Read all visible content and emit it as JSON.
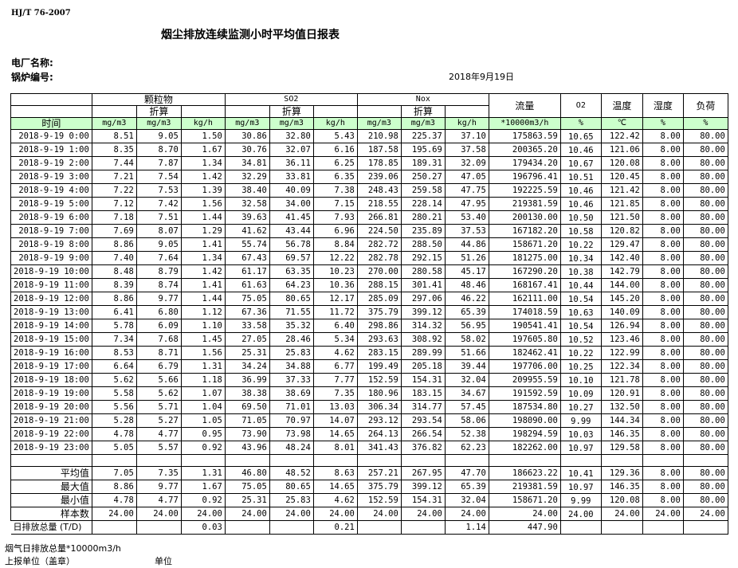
{
  "header": {
    "standard": "HJ/T  76-2007",
    "title": "烟尘排放连续监测小时平均值日报表",
    "plant_label": "电厂名称:",
    "boiler_label": "锅炉编号:",
    "date": "2018年9月19日"
  },
  "table": {
    "groups": {
      "particulate": "颗粒物",
      "so2": "SO2",
      "nox": "Nox",
      "flow": "流量",
      "o2": "O2",
      "temp": "温度",
      "humidity": "湿度",
      "load": "负荷"
    },
    "converted_label": "折算",
    "time_label": "时间",
    "units": [
      "mg/m3",
      "mg/m3",
      "kg/h",
      "mg/m3",
      "mg/m3",
      "kg/h",
      "mg/m3",
      "mg/m3",
      "kg/h",
      "*10000m3/h",
      "%",
      "℃",
      "%",
      "%"
    ],
    "rows": [
      [
        "2018-9-19 0:00",
        "8.51",
        "9.05",
        "1.50",
        "30.86",
        "32.80",
        "5.43",
        "210.98",
        "225.37",
        "37.10",
        "175863.59",
        "10.65",
        "122.42",
        "8.00",
        "80.00"
      ],
      [
        "2018-9-19 1:00",
        "8.35",
        "8.70",
        "1.67",
        "30.76",
        "32.07",
        "6.16",
        "187.58",
        "195.69",
        "37.58",
        "200365.20",
        "10.46",
        "121.06",
        "8.00",
        "80.00"
      ],
      [
        "2018-9-19 2:00",
        "7.44",
        "7.87",
        "1.34",
        "34.81",
        "36.11",
        "6.25",
        "178.85",
        "189.31",
        "32.09",
        "179434.20",
        "10.67",
        "120.08",
        "8.00",
        "80.00"
      ],
      [
        "2018-9-19 3:00",
        "7.21",
        "7.54",
        "1.42",
        "32.29",
        "33.81",
        "6.35",
        "239.06",
        "250.27",
        "47.05",
        "196796.41",
        "10.51",
        "120.45",
        "8.00",
        "80.00"
      ],
      [
        "2018-9-19 4:00",
        "7.22",
        "7.53",
        "1.39",
        "38.40",
        "40.09",
        "7.38",
        "248.43",
        "259.58",
        "47.75",
        "192225.59",
        "10.46",
        "121.42",
        "8.00",
        "80.00"
      ],
      [
        "2018-9-19 5:00",
        "7.12",
        "7.42",
        "1.56",
        "32.58",
        "34.00",
        "7.15",
        "218.55",
        "228.14",
        "47.95",
        "219381.59",
        "10.46",
        "121.85",
        "8.00",
        "80.00"
      ],
      [
        "2018-9-19 6:00",
        "7.18",
        "7.51",
        "1.44",
        "39.63",
        "41.45",
        "7.93",
        "266.81",
        "280.21",
        "53.40",
        "200130.00",
        "10.50",
        "121.50",
        "8.00",
        "80.00"
      ],
      [
        "2018-9-19 7:00",
        "7.69",
        "8.07",
        "1.29",
        "41.62",
        "43.44",
        "6.96",
        "224.50",
        "235.89",
        "37.53",
        "167182.20",
        "10.58",
        "120.82",
        "8.00",
        "80.00"
      ],
      [
        "2018-9-19 8:00",
        "8.86",
        "9.05",
        "1.41",
        "55.74",
        "56.78",
        "8.84",
        "282.72",
        "288.50",
        "44.86",
        "158671.20",
        "10.22",
        "129.47",
        "8.00",
        "80.00"
      ],
      [
        "2018-9-19 9:00",
        "7.40",
        "7.64",
        "1.34",
        "67.43",
        "69.57",
        "12.22",
        "282.78",
        "292.15",
        "51.26",
        "181275.00",
        "10.34",
        "142.40",
        "8.00",
        "80.00"
      ],
      [
        "2018-9-19 10:00",
        "8.48",
        "8.79",
        "1.42",
        "61.17",
        "63.35",
        "10.23",
        "270.00",
        "280.58",
        "45.17",
        "167290.20",
        "10.38",
        "142.79",
        "8.00",
        "80.00"
      ],
      [
        "2018-9-19 11:00",
        "8.39",
        "8.74",
        "1.41",
        "61.63",
        "64.23",
        "10.36",
        "288.15",
        "301.41",
        "48.46",
        "168167.41",
        "10.44",
        "144.00",
        "8.00",
        "80.00"
      ],
      [
        "2018-9-19 12:00",
        "8.86",
        "9.77",
        "1.44",
        "75.05",
        "80.65",
        "12.17",
        "285.09",
        "297.06",
        "46.22",
        "162111.00",
        "10.54",
        "145.20",
        "8.00",
        "80.00"
      ],
      [
        "2018-9-19 13:00",
        "6.41",
        "6.80",
        "1.12",
        "67.36",
        "71.55",
        "11.72",
        "375.79",
        "399.12",
        "65.39",
        "174018.59",
        "10.63",
        "140.09",
        "8.00",
        "80.00"
      ],
      [
        "2018-9-19 14:00",
        "5.78",
        "6.09",
        "1.10",
        "33.58",
        "35.32",
        "6.40",
        "298.86",
        "314.32",
        "56.95",
        "190541.41",
        "10.54",
        "126.94",
        "8.00",
        "80.00"
      ],
      [
        "2018-9-19 15:00",
        "7.34",
        "7.68",
        "1.45",
        "27.05",
        "28.46",
        "5.34",
        "293.63",
        "308.92",
        "58.02",
        "197605.80",
        "10.52",
        "123.46",
        "8.00",
        "80.00"
      ],
      [
        "2018-9-19 16:00",
        "8.53",
        "8.71",
        "1.56",
        "25.31",
        "25.83",
        "4.62",
        "283.15",
        "289.99",
        "51.66",
        "182462.41",
        "10.22",
        "122.99",
        "8.00",
        "80.00"
      ],
      [
        "2018-9-19 17:00",
        "6.64",
        "6.79",
        "1.31",
        "34.24",
        "34.88",
        "6.77",
        "199.49",
        "205.18",
        "39.44",
        "197706.00",
        "10.25",
        "122.34",
        "8.00",
        "80.00"
      ],
      [
        "2018-9-19 18:00",
        "5.62",
        "5.66",
        "1.18",
        "36.99",
        "37.33",
        "7.77",
        "152.59",
        "154.31",
        "32.04",
        "209955.59",
        "10.10",
        "121.78",
        "8.00",
        "80.00"
      ],
      [
        "2018-9-19 19:00",
        "5.58",
        "5.62",
        "1.07",
        "38.38",
        "38.69",
        "7.35",
        "180.96",
        "183.15",
        "34.67",
        "191592.59",
        "10.09",
        "120.91",
        "8.00",
        "80.00"
      ],
      [
        "2018-9-19 20:00",
        "5.56",
        "5.71",
        "1.04",
        "69.50",
        "71.01",
        "13.03",
        "306.34",
        "314.77",
        "57.45",
        "187534.80",
        "10.27",
        "132.50",
        "8.00",
        "80.00"
      ],
      [
        "2018-9-19 21:00",
        "5.28",
        "5.27",
        "1.05",
        "71.05",
        "70.97",
        "14.07",
        "293.12",
        "293.54",
        "58.06",
        "198090.00",
        "9.99",
        "144.34",
        "8.00",
        "80.00"
      ],
      [
        "2018-9-19 22:00",
        "4.78",
        "4.77",
        "0.95",
        "73.90",
        "73.98",
        "14.65",
        "264.13",
        "266.54",
        "52.38",
        "198294.59",
        "10.03",
        "146.35",
        "8.00",
        "80.00"
      ],
      [
        "2018-9-19 23:00",
        "5.05",
        "5.57",
        "0.92",
        "43.96",
        "48.24",
        "8.01",
        "341.43",
        "376.82",
        "62.23",
        "182262.00",
        "10.97",
        "129.58",
        "8.00",
        "80.00"
      ]
    ],
    "stats": [
      [
        "平均值",
        "7.05",
        "7.35",
        "1.31",
        "46.80",
        "48.52",
        "8.63",
        "257.21",
        "267.95",
        "47.70",
        "186623.22",
        "10.41",
        "129.36",
        "8.00",
        "80.00"
      ],
      [
        "最大值",
        "8.86",
        "9.77",
        "1.67",
        "75.05",
        "80.65",
        "14.65",
        "375.79",
        "399.12",
        "65.39",
        "219381.59",
        "10.97",
        "146.35",
        "8.00",
        "80.00"
      ],
      [
        "最小值",
        "4.78",
        "4.77",
        "0.92",
        "25.31",
        "25.83",
        "4.62",
        "152.59",
        "154.31",
        "32.04",
        "158671.20",
        "9.99",
        "120.08",
        "8.00",
        "80.00"
      ],
      [
        "样本数",
        "24.00",
        "24.00",
        "24.00",
        "24.00",
        "24.00",
        "24.00",
        "24.00",
        "24.00",
        "24.00",
        "24.00",
        "24.00",
        "24.00",
        "24.00",
        "24.00"
      ]
    ],
    "daily_total": [
      "日排放总量 (T/D)",
      "",
      "",
      "0.03",
      "",
      "",
      "0.21",
      "",
      "",
      "1.14",
      "447.90",
      "",
      "",
      "",
      ""
    ]
  },
  "footer": {
    "flue_gas_total": "烟气日排放总量*10000m3/h",
    "reporting_unit": "上报单位（盖章）",
    "unit": "单位"
  }
}
